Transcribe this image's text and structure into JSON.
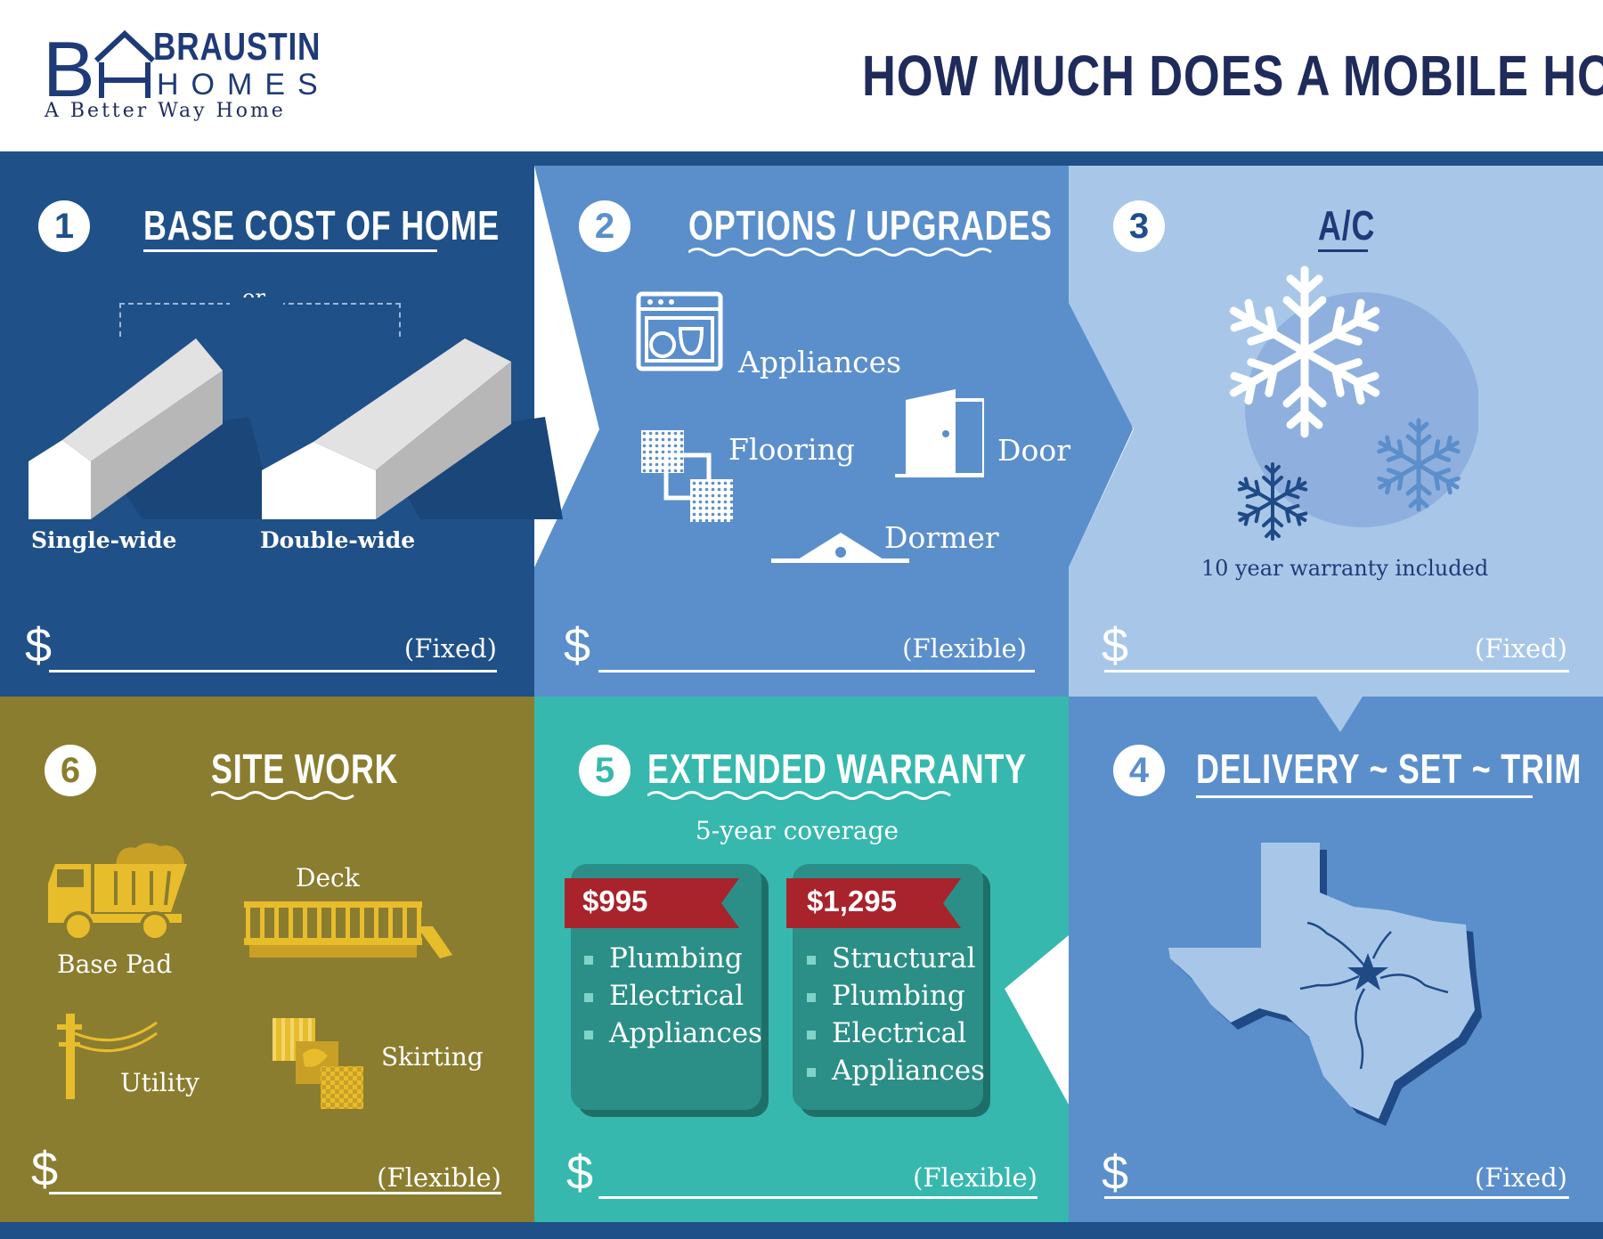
{
  "brand": {
    "name_line1": "BRAUSTIN",
    "name_line2": "HOMES",
    "tagline": "A Better Way Home",
    "monogram": "BH"
  },
  "title": "HOW MUCH DOES A MOBILE HOME COST?",
  "colors": {
    "navy": "#1f5088",
    "mid_blue": "#5b8fcb",
    "light_blue": "#a8c7e8",
    "olive": "#8b7d2f",
    "teal": "#36b8ae",
    "red": "#a8232b",
    "gold": "#e8bd2c"
  },
  "sections": {
    "base": {
      "number": "1",
      "title": "BASE COST OF HOME",
      "or": "or",
      "single": "Single-wide",
      "double": "Double-wide",
      "currency": "$",
      "type": "(Fixed)"
    },
    "options": {
      "number": "2",
      "title": "OPTIONS / UPGRADES",
      "appliances": "Appliances",
      "flooring": "Flooring",
      "door": "Door",
      "dormer": "Dormer",
      "currency": "$",
      "type": "(Flexible)"
    },
    "ac": {
      "number": "3",
      "title": "A/C",
      "warranty": "10 year warranty included",
      "currency": "$",
      "type": "(Fixed)"
    },
    "delivery": {
      "number": "4",
      "title": "DELIVERY ~ SET ~ TRIM",
      "currency": "$",
      "type": "(Fixed)"
    },
    "warranty": {
      "number": "5",
      "title": "EXTENDED WARRANTY",
      "subtitle": "5-year coverage",
      "currency": "$",
      "type": "(Flexible)",
      "plans": [
        {
          "price": "$995",
          "items": [
            "Plumbing",
            "Electrical",
            "Appliances"
          ]
        },
        {
          "price": "$1,295",
          "items": [
            "Structural",
            "Plumbing",
            "Electrical",
            "Appliances"
          ]
        }
      ]
    },
    "site": {
      "number": "6",
      "title": "SITE WORK",
      "base_pad": "Base Pad",
      "deck": "Deck",
      "utility": "Utility",
      "skirting": "Skirting",
      "currency": "$",
      "type": "(Flexible)"
    }
  }
}
